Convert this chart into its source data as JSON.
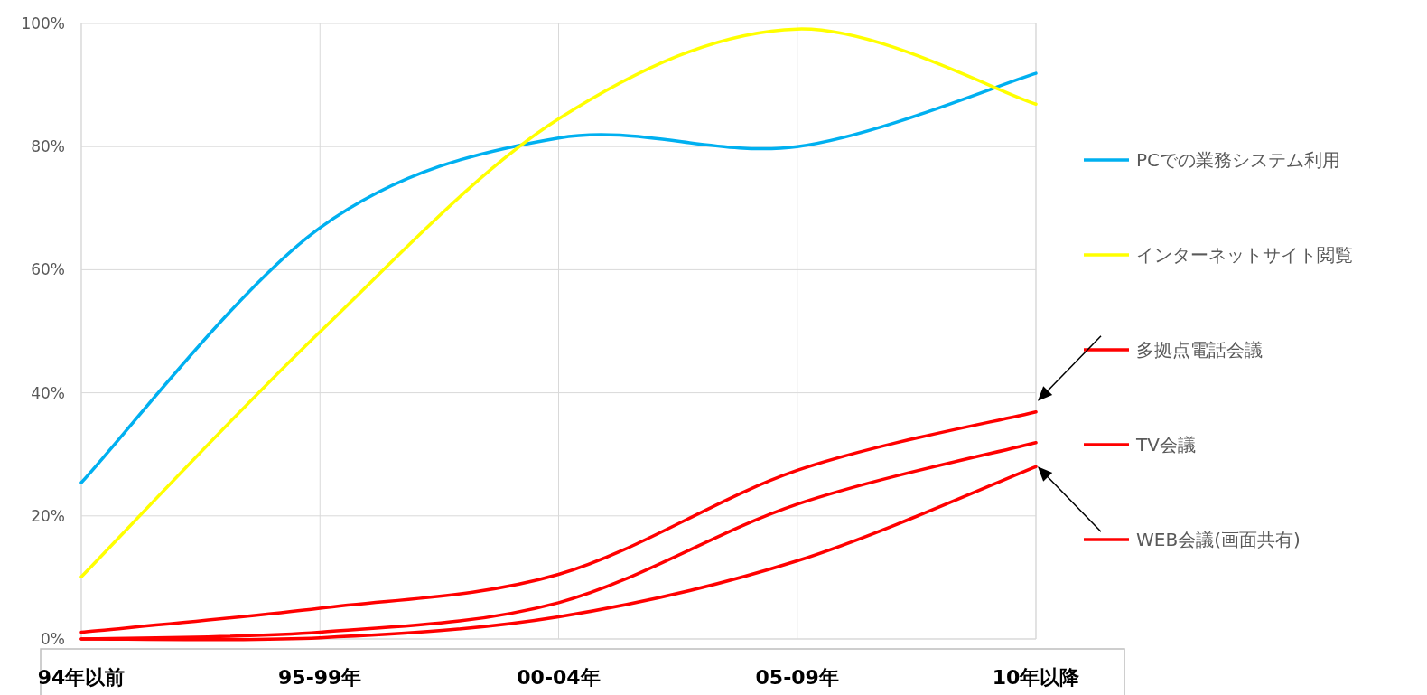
{
  "chart_data": {
    "type": "line",
    "categories": [
      "94年以前",
      "95-99年",
      "00-04年",
      "05-09年",
      "10年以降"
    ],
    "ylim": [
      0,
      100
    ],
    "yticks": [
      {
        "value": 0,
        "label": "0%"
      },
      {
        "value": 20,
        "label": "20%"
      },
      {
        "value": 40,
        "label": "40%"
      },
      {
        "value": 60,
        "label": "60%"
      },
      {
        "value": 80,
        "label": "80%"
      },
      {
        "value": 100,
        "label": "100%"
      }
    ],
    "grid": true,
    "legend": "right",
    "series": [
      {
        "name": "PCでの業務システム利用",
        "color": "#00b0f0",
        "values": [
          25.4,
          66.8,
          81.4,
          80.0,
          91.9
        ]
      },
      {
        "name": "インターネットサイト閲覧",
        "color": "#ffff00",
        "values": [
          10.1,
          49.9,
          84.5,
          99.1,
          86.9
        ]
      },
      {
        "name": "多拠点電話会議",
        "color": "#ff0000",
        "values": [
          1.1,
          5.0,
          10.5,
          27.4,
          36.9
        ]
      },
      {
        "name": "TV会議",
        "color": "#ff0000",
        "values": [
          0,
          1.1,
          5.9,
          21.9,
          31.9
        ]
      },
      {
        "name": "WEB会議(画面共有)",
        "color": "#ff0000",
        "values": [
          0,
          0.2,
          3.6,
          12.7,
          28.0
        ]
      }
    ]
  }
}
